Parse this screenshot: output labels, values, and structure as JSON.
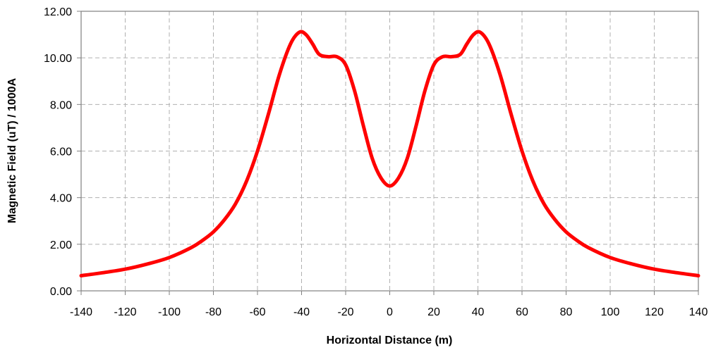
{
  "chart_data": {
    "type": "line",
    "title": "",
    "xlabel": "Horizontal Distance (m)",
    "ylabel": "Magnetic Field (uT) / 1000A",
    "xlim": [
      -140,
      140
    ],
    "ylim": [
      0,
      12
    ],
    "xticks": [
      -140,
      -120,
      -100,
      -80,
      -60,
      -40,
      -20,
      0,
      20,
      40,
      60,
      80,
      100,
      120,
      140
    ],
    "yticks": [
      0,
      2,
      4,
      6,
      8,
      10,
      12
    ],
    "xtick_labels": [
      "-140",
      "-120",
      "-100",
      "-80",
      "-60",
      "-40",
      "-20",
      "0",
      "20",
      "40",
      "60",
      "80",
      "100",
      "120",
      "140"
    ],
    "ytick_labels": [
      "0.00",
      "2.00",
      "4.00",
      "6.00",
      "8.00",
      "10.00",
      "12.00"
    ],
    "grid": true,
    "legend": "none",
    "line_color": "#ff0000",
    "series": [
      {
        "values": [
          [
            -140,
            0.65
          ],
          [
            -130,
            0.78
          ],
          [
            -120,
            0.93
          ],
          [
            -110,
            1.15
          ],
          [
            -100,
            1.43
          ],
          [
            -90,
            1.86
          ],
          [
            -85,
            2.16
          ],
          [
            -80,
            2.53
          ],
          [
            -75,
            3.05
          ],
          [
            -70,
            3.73
          ],
          [
            -65,
            4.7
          ],
          [
            -60,
            6.0
          ],
          [
            -55,
            7.6
          ],
          [
            -50,
            9.3
          ],
          [
            -45,
            10.6
          ],
          [
            -41,
            11.1
          ],
          [
            -38,
            11.0
          ],
          [
            -35,
            10.6
          ],
          [
            -32,
            10.15
          ],
          [
            -28,
            10.05
          ],
          [
            -24,
            10.05
          ],
          [
            -20,
            9.7
          ],
          [
            -16,
            8.6
          ],
          [
            -12,
            7.1
          ],
          [
            -8,
            5.7
          ],
          [
            -4,
            4.85
          ],
          [
            0,
            4.5
          ],
          [
            4,
            4.85
          ],
          [
            8,
            5.7
          ],
          [
            12,
            7.1
          ],
          [
            16,
            8.6
          ],
          [
            20,
            9.7
          ],
          [
            24,
            10.05
          ],
          [
            28,
            10.05
          ],
          [
            32,
            10.15
          ],
          [
            35,
            10.6
          ],
          [
            38,
            11.0
          ],
          [
            41,
            11.1
          ],
          [
            45,
            10.6
          ],
          [
            50,
            9.3
          ],
          [
            55,
            7.6
          ],
          [
            60,
            6.0
          ],
          [
            65,
            4.7
          ],
          [
            70,
            3.73
          ],
          [
            75,
            3.05
          ],
          [
            80,
            2.53
          ],
          [
            85,
            2.16
          ],
          [
            90,
            1.86
          ],
          [
            100,
            1.43
          ],
          [
            110,
            1.15
          ],
          [
            120,
            0.93
          ],
          [
            130,
            0.78
          ],
          [
            140,
            0.65
          ]
        ]
      }
    ]
  }
}
